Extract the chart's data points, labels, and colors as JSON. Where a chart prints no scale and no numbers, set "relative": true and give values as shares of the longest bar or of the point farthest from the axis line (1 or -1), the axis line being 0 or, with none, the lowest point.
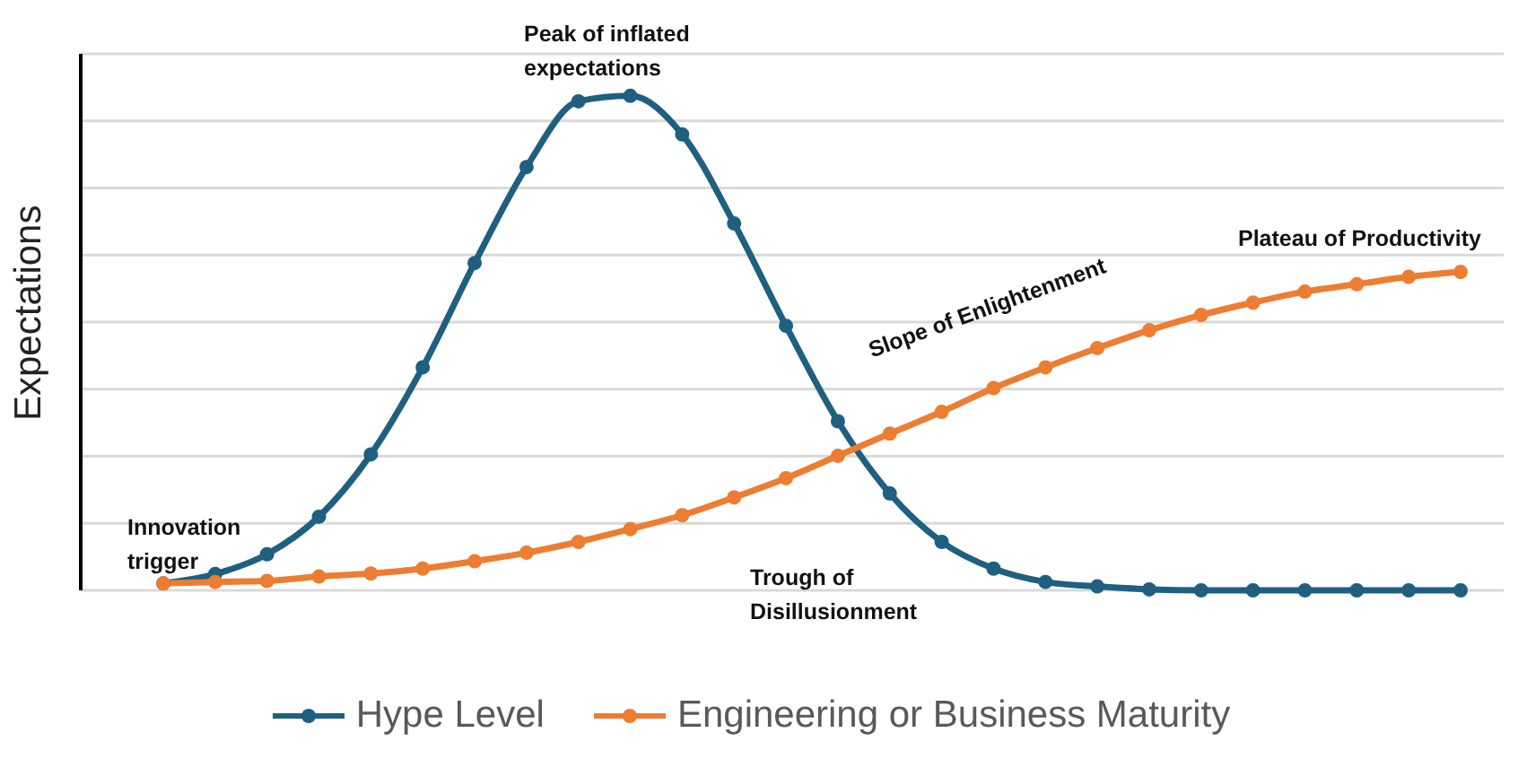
{
  "chart_data": {
    "type": "line",
    "relative": true,
    "ylabel": "Expectations",
    "categories": [
      null,
      null,
      null,
      null,
      null,
      null,
      null,
      null,
      null,
      null,
      null,
      null,
      null,
      null,
      null,
      null,
      null,
      null,
      null,
      null,
      null,
      null,
      null,
      null,
      null,
      null
    ],
    "series": [
      {
        "name": "Hype Level",
        "color": "#1f5f80",
        "values": [
          0.014,
          0.033,
          0.073,
          0.149,
          0.275,
          0.451,
          0.662,
          0.856,
          0.989,
          1,
          0.922,
          0.742,
          0.535,
          0.342,
          0.196,
          0.098,
          0.044,
          0.017,
          0.008,
          0.002,
          0,
          0,
          0,
          0,
          0,
          0
        ]
      },
      {
        "name": "Engineering or Business Maturity",
        "color": "#ed7d31",
        "values": [
          0.014,
          0.017,
          0.019,
          0.028,
          0.034,
          0.044,
          0.059,
          0.076,
          0.098,
          0.124,
          0.152,
          0.188,
          0.227,
          0.272,
          0.317,
          0.361,
          0.409,
          0.451,
          0.49,
          0.526,
          0.557,
          0.582,
          0.604,
          0.619,
          0.634,
          0.644
        ]
      }
    ],
    "annotations": [
      "Peak of inflated expectations",
      "Innovation trigger",
      "Trough of Disillusionment",
      "Slope of Enlightenment",
      "Plateau of Productivity"
    ],
    "grid": "y",
    "legend": "bottom",
    "marker": "circle",
    "line_style": "solid"
  }
}
